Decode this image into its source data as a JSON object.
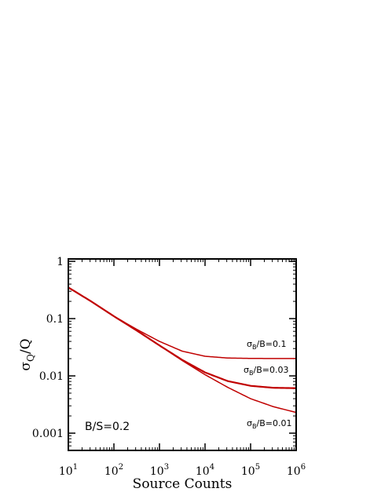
{
  "chart_data": {
    "type": "line",
    "xscale": "log",
    "yscale": "log",
    "xlim": [
      10,
      1000000
    ],
    "ylim": [
      0.0005,
      1.1
    ],
    "xlabel": "Source Counts",
    "ylabel": "σQ/Q",
    "xticks": [
      {
        "value": 10,
        "mantissa": "10",
        "exp": "1"
      },
      {
        "value": 100,
        "mantissa": "10",
        "exp": "2"
      },
      {
        "value": 1000,
        "mantissa": "10",
        "exp": "3"
      },
      {
        "value": 10000,
        "mantissa": "10",
        "exp": "4"
      },
      {
        "value": 100000,
        "mantissa": "10",
        "exp": "5"
      },
      {
        "value": 1000000,
        "mantissa": "10",
        "exp": "6"
      }
    ],
    "yticks": [
      {
        "value": 1,
        "label": "1"
      },
      {
        "value": 0.1,
        "label": "0.1"
      },
      {
        "value": 0.01,
        "label": "0.01"
      },
      {
        "value": 0.001,
        "label": "0.001"
      }
    ],
    "series": [
      {
        "name": "σB/B=0.1",
        "color": "#c00000",
        "x": [
          10,
          31.6,
          100,
          316,
          1000,
          3160,
          10000,
          31600,
          100000,
          316000,
          1000000
        ],
        "y": [
          0.35,
          0.2,
          0.11,
          0.065,
          0.04,
          0.027,
          0.022,
          0.0205,
          0.0202,
          0.0201,
          0.0201
        ]
      },
      {
        "name": "σB/B=0.03",
        "color": "#c00000",
        "x": [
          10,
          31.6,
          100,
          316,
          1000,
          3160,
          10000,
          31600,
          100000,
          316000,
          1000000
        ],
        "y": [
          0.35,
          0.2,
          0.11,
          0.062,
          0.034,
          0.019,
          0.0115,
          0.0081,
          0.0067,
          0.0062,
          0.0061
        ]
      },
      {
        "name": "σB/B=0.01",
        "color": "#c00000",
        "x": [
          10,
          31.6,
          100,
          316,
          1000,
          3160,
          10000,
          31600,
          100000,
          316000,
          1000000
        ],
        "y": [
          0.35,
          0.2,
          0.11,
          0.062,
          0.034,
          0.0185,
          0.0105,
          0.0063,
          0.004,
          0.0029,
          0.0023
        ]
      }
    ],
    "annotations": [
      {
        "base": "σ",
        "sub": "B",
        "text": "/B=0.1"
      },
      {
        "base": "σ",
        "sub": "B",
        "text": "/B=0.03"
      },
      {
        "base": "σ",
        "sub": "B",
        "text": "/B=0.01"
      }
    ],
    "inset_text": "B/S=0.2"
  }
}
